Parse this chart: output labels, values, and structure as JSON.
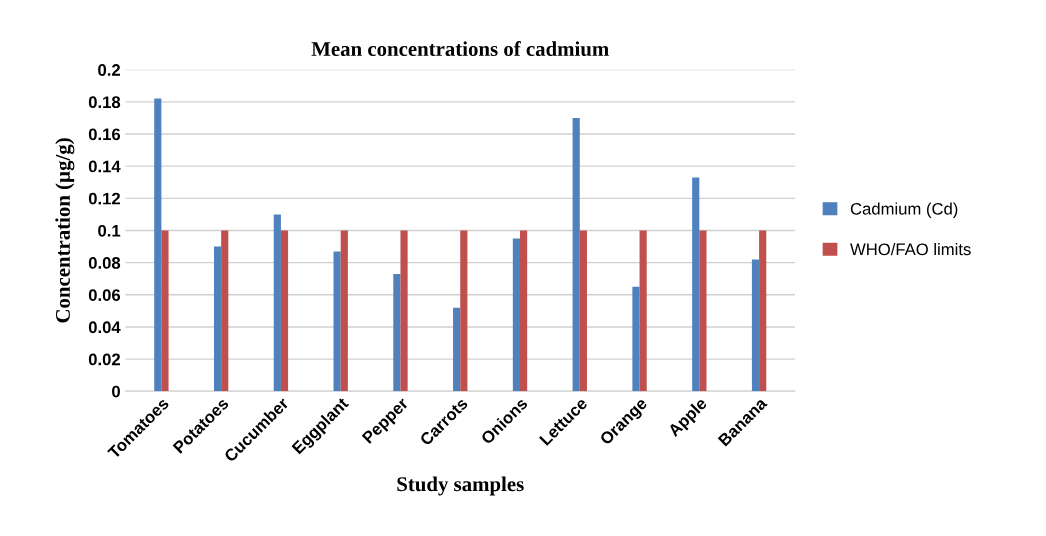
{
  "chart_data": {
    "type": "bar",
    "title": "Mean concentrations of cadmium",
    "xlabel": "Study samples",
    "ylabel": "Concentration (µg/g)",
    "categories": [
      "Tomatoes",
      "Potatoes",
      "Cucumber",
      "Eggplant",
      "Pepper",
      "Carrots",
      "Onions",
      "Lettuce",
      "Orange",
      "Apple",
      "Banana"
    ],
    "series": [
      {
        "name": "Cadmium (Cd)",
        "color": "#4f81bd",
        "values": [
          0.182,
          0.09,
          0.11,
          0.087,
          0.073,
          0.052,
          0.095,
          0.17,
          0.065,
          0.133,
          0.082
        ]
      },
      {
        "name": "WHO/FAO limits",
        "color": "#c0504d",
        "values": [
          0.1,
          0.1,
          0.1,
          0.1,
          0.1,
          0.1,
          0.1,
          0.1,
          0.1,
          0.1,
          0.1
        ]
      }
    ],
    "ylim": [
      0,
      0.2
    ],
    "yticks": [
      0,
      0.02,
      0.04,
      0.06,
      0.08,
      0.1,
      0.12,
      0.14,
      0.16,
      0.18,
      0.2
    ],
    "grid": "y",
    "legend": "right"
  }
}
